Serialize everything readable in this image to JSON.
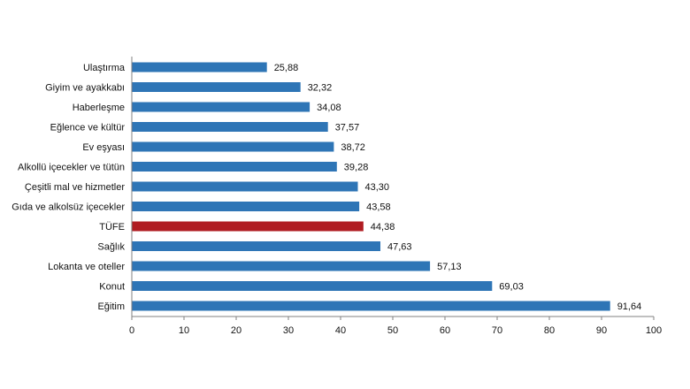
{
  "chart_data": {
    "type": "bar",
    "orientation": "horizontal",
    "title": "",
    "xlabel": "",
    "ylabel": "",
    "xlim": [
      0,
      100
    ],
    "x_ticks": [
      0,
      10,
      20,
      30,
      40,
      50,
      60,
      70,
      80,
      90,
      100
    ],
    "grid": false,
    "legend": "none",
    "decimal_separator": ",",
    "colors": {
      "default": "#2E75B6",
      "highlight": "#B01C22"
    },
    "highlight_category": "TÜFE",
    "categories": [
      "Ulaştırma",
      "Giyim ve ayakkabı",
      "Haberleşme",
      "Eğlence ve kültür",
      "Ev eşyası",
      "Alkollü içecekler ve tütün",
      "Çeşitli mal ve hizmetler",
      "Gıda ve alkolsüz içecekler",
      "TÜFE",
      "Sağlık",
      "Lokanta ve oteller",
      "Konut",
      "Eğitim"
    ],
    "values": [
      25.88,
      32.32,
      34.08,
      37.57,
      38.72,
      39.28,
      43.3,
      43.58,
      44.38,
      47.63,
      57.13,
      69.03,
      91.64
    ]
  }
}
